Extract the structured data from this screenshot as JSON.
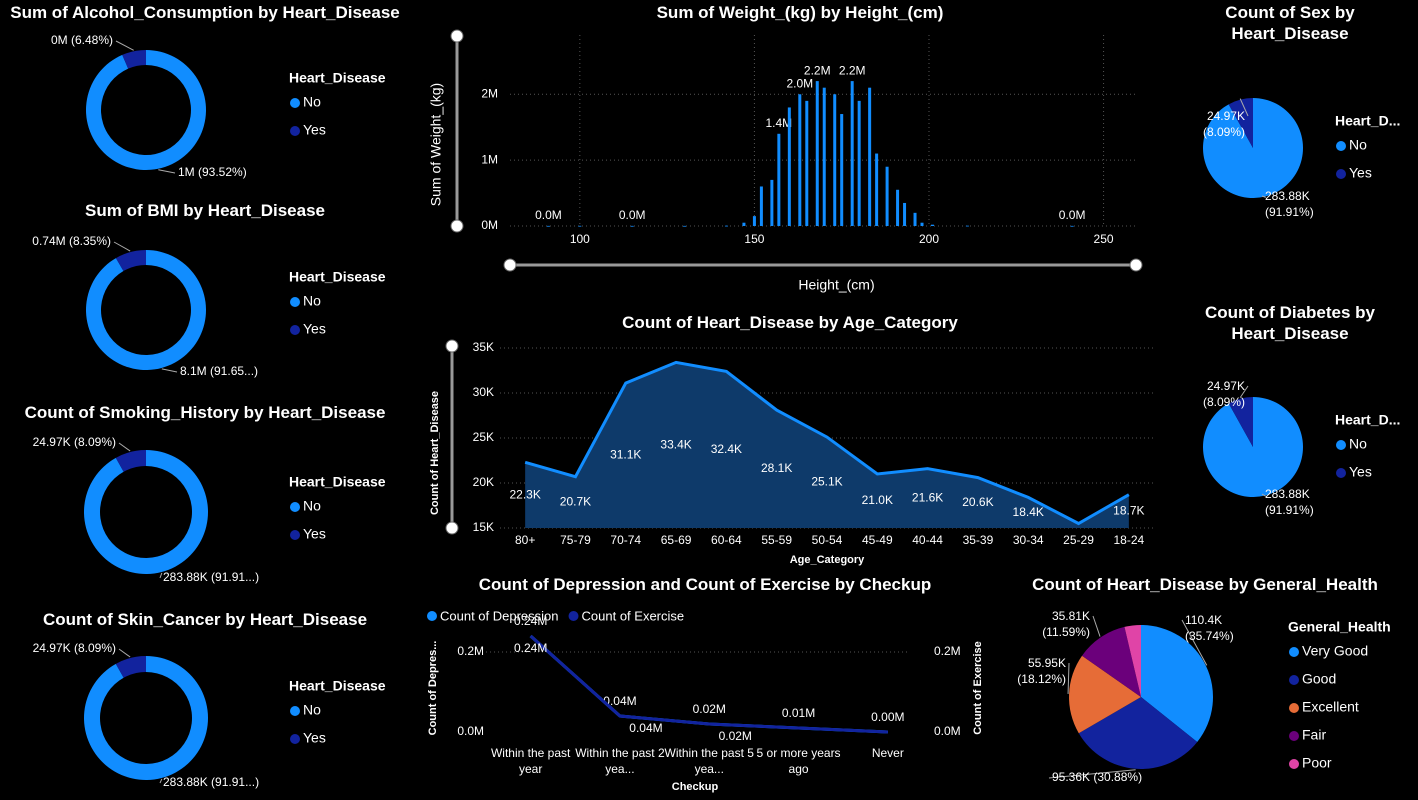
{
  "chart_data": [
    {
      "type": "donut",
      "title": "Sum of Alcohol_Consumption by Heart_Disease",
      "legend_title": "Heart_Disease",
      "categories": [
        "No",
        "Yes"
      ],
      "values": [
        93.52,
        6.48
      ],
      "value_labels": [
        "1M (93.52%)",
        "0M (6.48%)"
      ],
      "colors": [
        "#118DFF",
        "#12239E"
      ]
    },
    {
      "type": "donut",
      "title": "Sum of BMI by Heart_Disease",
      "legend_title": "Heart_Disease",
      "categories": [
        "No",
        "Yes"
      ],
      "values": [
        91.65,
        8.35
      ],
      "value_labels": [
        "8.1M (91.65...)",
        "0.74M (8.35%)"
      ],
      "colors": [
        "#118DFF",
        "#12239E"
      ]
    },
    {
      "type": "donut",
      "title": "Count of Smoking_History by Heart_Disease",
      "legend_title": "Heart_Disease",
      "categories": [
        "No",
        "Yes"
      ],
      "values": [
        283880,
        24970
      ],
      "value_labels": [
        "283.88K (91.91...)",
        "24.97K (8.09%)"
      ],
      "colors": [
        "#118DFF",
        "#12239E"
      ]
    },
    {
      "type": "donut",
      "title": "Count of Skin_Cancer by Heart_Disease",
      "legend_title": "Heart_Disease",
      "categories": [
        "No",
        "Yes"
      ],
      "values": [
        283880,
        24970
      ],
      "value_labels": [
        "283.88K (91.91...)",
        "24.97K (8.09%)"
      ],
      "colors": [
        "#118DFF",
        "#12239E"
      ]
    },
    {
      "type": "bar",
      "title": "Sum of Weight_(kg) by Height_(cm)",
      "x_label": "Height_(cm)",
      "y_label": "Sum of Weight_(kg)",
      "x": [
        91,
        100,
        115,
        130,
        142,
        147,
        150,
        152,
        155,
        157,
        160,
        163,
        165,
        168,
        170,
        173,
        175,
        178,
        180,
        183,
        185,
        188,
        191,
        193,
        196,
        198,
        201,
        211,
        241
      ],
      "values": [
        2000,
        3000,
        2000,
        2000,
        5000,
        50000,
        150000,
        600000,
        700000,
        1400000,
        1800000,
        2000000,
        1900000,
        2200000,
        2100000,
        2000000,
        1700000,
        2200000,
        1900000,
        2100000,
        1100000,
        900000,
        550000,
        350000,
        200000,
        50000,
        20000,
        5000,
        2000
      ],
      "value_labels": [
        "0.0M",
        null,
        "0.0M",
        null,
        null,
        null,
        null,
        null,
        null,
        "1.4M",
        null,
        "2.0M",
        null,
        "2.2M",
        null,
        null,
        null,
        "2.2M",
        null,
        null,
        null,
        null,
        null,
        null,
        null,
        null,
        null,
        null,
        "0.0M"
      ],
      "color": "#118DFF",
      "xlim": [
        80,
        259
      ],
      "xticks": [
        100,
        150,
        200,
        250
      ],
      "ylim": [
        0,
        2900000
      ],
      "yticks": [
        {
          "value": 0,
          "label": "0M"
        },
        {
          "value": 1000000,
          "label": "1M"
        },
        {
          "value": 2000000,
          "label": "2M"
        }
      ],
      "grid": true
    },
    {
      "type": "area",
      "title": "Count of Heart_Disease by Age_Category",
      "x_label": "Age_Category",
      "y_label": "Count of Heart_Disease",
      "categories": [
        "80+",
        "75-79",
        "70-74",
        "65-69",
        "60-64",
        "55-59",
        "50-54",
        "45-49",
        "40-44",
        "35-39",
        "30-34",
        "25-29",
        "18-24"
      ],
      "values": [
        22300,
        20700,
        31100,
        33400,
        32400,
        28100,
        25100,
        21000,
        21600,
        20600,
        18400,
        15500,
        18700
      ],
      "value_labels": [
        "22.3K",
        "20.7K",
        "31.1K",
        "33.4K",
        "32.4K",
        "28.1K",
        "25.1K",
        "21.0K",
        "21.6K",
        "20.6K",
        "18.4K",
        null,
        "18.7K"
      ],
      "color": "#118DFF",
      "fill": "#0E3A6A",
      "ylim": [
        15000,
        35000
      ],
      "yticks": [
        {
          "value": 15000,
          "label": "15K"
        },
        {
          "value": 20000,
          "label": "20K"
        },
        {
          "value": 25000,
          "label": "25K"
        },
        {
          "value": 30000,
          "label": "30K"
        },
        {
          "value": 35000,
          "label": "35K"
        }
      ],
      "grid": true
    },
    {
      "type": "line",
      "title": "Count of Depression and Count of Exercise by Checkup",
      "x_label": "Checkup",
      "y_label": "Count of Depres...",
      "y2_label": "Count of Exercise",
      "categories": [
        "Within the past year",
        "Within the past 2 yea...",
        "Within the past 5 yea...",
        "5 or more years ago",
        "Never"
      ],
      "series": [
        {
          "name": "Count of Depression",
          "color": "#118DFF",
          "values": [
            240000,
            40000,
            20000,
            10000,
            0
          ],
          "value_labels": [
            "0.24M",
            "0.04M",
            "0.02M",
            "0.01M",
            "0.00M"
          ]
        },
        {
          "name": "Count of Exercise",
          "color": "#12239E",
          "axis": "y2",
          "values": [
            240000,
            40000,
            20000,
            10000,
            0
          ],
          "value_labels": [
            "0.24M",
            "0.04M",
            "0.02M",
            null,
            null
          ]
        }
      ],
      "ylim": [
        0,
        300000
      ],
      "yticks": [
        {
          "value": 0,
          "label": "0.0M"
        },
        {
          "value": 200000,
          "label": "0.2M"
        }
      ],
      "y2lim": [
        0,
        300000
      ],
      "y2ticks": [
        {
          "value": 0,
          "label": "0.0M"
        },
        {
          "value": 200000,
          "label": "0.2M"
        }
      ],
      "grid": true
    },
    {
      "type": "pie",
      "title": "Count of Sex by Heart_Disease",
      "legend_title": "Heart_D...",
      "categories": [
        "No",
        "Yes"
      ],
      "values": [
        283880,
        24970
      ],
      "value_labels": [
        "283.88K (91.91%)",
        "24.97K (8.09%)"
      ],
      "colors": [
        "#118DFF",
        "#12239E"
      ]
    },
    {
      "type": "pie",
      "title": "Count of Diabetes by Heart_Disease",
      "legend_title": "Heart_D...",
      "categories": [
        "No",
        "Yes"
      ],
      "values": [
        283880,
        24970
      ],
      "value_labels": [
        "283.88K (91.91%)",
        "24.97K (8.09%)"
      ],
      "colors": [
        "#118DFF",
        "#12239E"
      ]
    },
    {
      "type": "pie",
      "title": "Count of Heart_Disease by General_Health",
      "legend_title": "General_Health",
      "categories": [
        "Very Good",
        "Good",
        "Excellent",
        "Fair",
        "Poor"
      ],
      "values": [
        110400,
        95360,
        55950,
        35810,
        11380
      ],
      "value_labels": [
        "110.4K (35.74%)",
        "95.36K (30.88%)",
        "55.95K (18.12%)",
        "35.81K (11.59%)",
        null
      ],
      "colors": [
        "#118DFF",
        "#12239E",
        "#E66C37",
        "#6B007B",
        "#E044A7"
      ]
    }
  ]
}
